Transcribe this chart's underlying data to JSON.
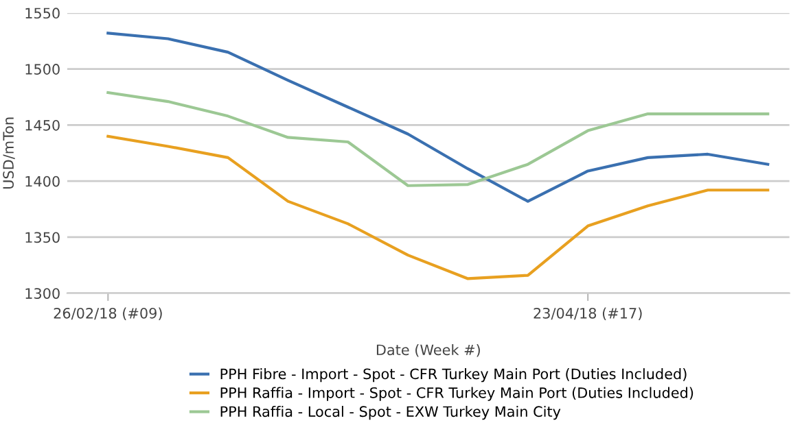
{
  "chart_data": {
    "type": "line",
    "xlabel": "Date (Week #)",
    "ylabel": "USD/mTon",
    "categories": [
      "26/02/18 (#09)",
      null,
      null,
      null,
      null,
      null,
      null,
      null,
      "23/04/18 (#17)",
      null,
      null,
      null
    ],
    "series": [
      {
        "name": "PPH Fibre - Import - Spot - CFR Turkey Main Port (Duties Included)",
        "color": "#3a70b0",
        "values": [
          1532,
          1527,
          1515,
          1490,
          1466,
          1442,
          1411,
          1382,
          1409,
          1421,
          1424,
          1415
        ]
      },
      {
        "name": "PPH Raffia - Import - Spot - CFR Turkey Main Port (Duties Included)",
        "color": "#e8a020",
        "values": [
          1440,
          1431,
          1421,
          1382,
          1362,
          1334,
          1313,
          1316,
          1360,
          1378,
          1392,
          1392
        ]
      },
      {
        "name": "PPH Raffia - Local - Spot - EXW Turkey Main City",
        "color": "#9cc894",
        "values": [
          1479,
          1471,
          1458,
          1439,
          1435,
          1396,
          1397,
          1415,
          1445,
          1460,
          1460,
          1460
        ]
      }
    ],
    "ylim": [
      1300,
      1550
    ],
    "yticks": [
      1300,
      1350,
      1400,
      1450,
      1500,
      1550
    ],
    "grid": "y",
    "legend": "bottom",
    "marker": "none",
    "line_style": "solid"
  }
}
